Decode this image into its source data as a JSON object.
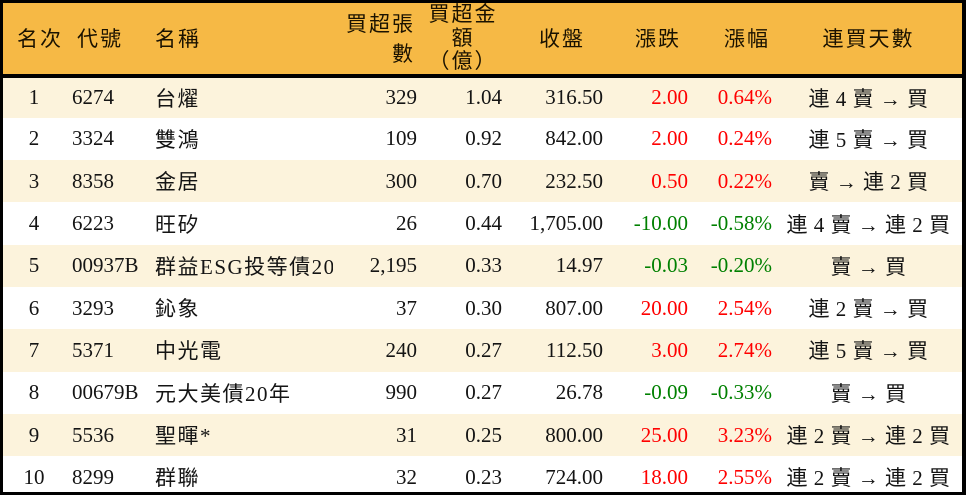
{
  "colors": {
    "header_bg": "#f6b945",
    "row_alt": "#fcf3dc",
    "row_main": "#ffffff",
    "border": "#000000",
    "up": "#ff0000",
    "down": "#008000"
  },
  "table": {
    "headers": {
      "rank": "名次",
      "code": "代號",
      "name": "名稱",
      "volume": "買超張數",
      "amount": "買超金額\n（億）",
      "close": "收盤",
      "change": "漲跌",
      "change_pct": "漲幅",
      "streak": "連買天數"
    },
    "rows": [
      {
        "rank": "1",
        "code": "6274",
        "name": "台燿",
        "volume": "329",
        "amount": "1.04",
        "close": "316.50",
        "change": "2.00",
        "change_pct": "0.64%",
        "trend": "up",
        "streak": "連 4 賣 → 買"
      },
      {
        "rank": "2",
        "code": "3324",
        "name": "雙鴻",
        "volume": "109",
        "amount": "0.92",
        "close": "842.00",
        "change": "2.00",
        "change_pct": "0.24%",
        "trend": "up",
        "streak": "連 5 賣 → 買"
      },
      {
        "rank": "3",
        "code": "8358",
        "name": "金居",
        "volume": "300",
        "amount": "0.70",
        "close": "232.50",
        "change": "0.50",
        "change_pct": "0.22%",
        "trend": "up",
        "streak": "賣 → 連 2 買"
      },
      {
        "rank": "4",
        "code": "6223",
        "name": "旺矽",
        "volume": "26",
        "amount": "0.44",
        "close": "1,705.00",
        "change": "-10.00",
        "change_pct": "-0.58%",
        "trend": "down",
        "streak": "連 4 賣 → 連 2 買"
      },
      {
        "rank": "5",
        "code": "00937B",
        "name": "群益ESG投等債20",
        "volume": "2,195",
        "amount": "0.33",
        "close": "14.97",
        "change": "-0.03",
        "change_pct": "-0.20%",
        "trend": "down",
        "streak": "賣 → 買"
      },
      {
        "rank": "6",
        "code": "3293",
        "name": "鈊象",
        "volume": "37",
        "amount": "0.30",
        "close": "807.00",
        "change": "20.00",
        "change_pct": "2.54%",
        "trend": "up",
        "streak": "連 2 賣 → 買"
      },
      {
        "rank": "7",
        "code": "5371",
        "name": "中光電",
        "volume": "240",
        "amount": "0.27",
        "close": "112.50",
        "change": "3.00",
        "change_pct": "2.74%",
        "trend": "up",
        "streak": "連 5 賣 → 買"
      },
      {
        "rank": "8",
        "code": "00679B",
        "name": "元大美債20年",
        "volume": "990",
        "amount": "0.27",
        "close": "26.78",
        "change": "-0.09",
        "change_pct": "-0.33%",
        "trend": "down",
        "streak": "賣 → 買"
      },
      {
        "rank": "9",
        "code": "5536",
        "name": "聖暉*",
        "volume": "31",
        "amount": "0.25",
        "close": "800.00",
        "change": "25.00",
        "change_pct": "3.23%",
        "trend": "up",
        "streak": "連 2 賣 → 連 2 買"
      },
      {
        "rank": "10",
        "code": "8299",
        "name": "群聯",
        "volume": "32",
        "amount": "0.23",
        "close": "724.00",
        "change": "18.00",
        "change_pct": "2.55%",
        "trend": "up",
        "streak": "連 2 賣 → 連 2 買"
      }
    ]
  },
  "chart_data": {
    "type": "table",
    "title": "",
    "columns": [
      "名次",
      "代號",
      "名稱",
      "買超張數",
      "買超金額（億）",
      "收盤",
      "漲跌",
      "漲幅",
      "連買天數"
    ],
    "rows": [
      [
        "1",
        "6274",
        "台燿",
        "329",
        "1.04",
        "316.50",
        "2.00",
        "0.64%",
        "連 4 賣 → 買"
      ],
      [
        "2",
        "3324",
        "雙鴻",
        "109",
        "0.92",
        "842.00",
        "2.00",
        "0.24%",
        "連 5 賣 → 買"
      ],
      [
        "3",
        "8358",
        "金居",
        "300",
        "0.70",
        "232.50",
        "0.50",
        "0.22%",
        "賣 → 連 2 買"
      ],
      [
        "4",
        "6223",
        "旺矽",
        "26",
        "0.44",
        "1,705.00",
        "-10.00",
        "-0.58%",
        "連 4 賣 → 連 2 買"
      ],
      [
        "5",
        "00937B",
        "群益ESG投等債20",
        "2,195",
        "0.33",
        "14.97",
        "-0.03",
        "-0.20%",
        "賣 → 買"
      ],
      [
        "6",
        "3293",
        "鈊象",
        "37",
        "0.30",
        "807.00",
        "20.00",
        "2.54%",
        "連 2 賣 → 買"
      ],
      [
        "7",
        "5371",
        "中光電",
        "240",
        "0.27",
        "112.50",
        "3.00",
        "2.74%",
        "連 5 賣 → 買"
      ],
      [
        "8",
        "00679B",
        "元大美債20年",
        "990",
        "0.27",
        "26.78",
        "-0.09",
        "-0.33%",
        "賣 → 買"
      ],
      [
        "9",
        "5536",
        "聖暉*",
        "31",
        "0.25",
        "800.00",
        "25.00",
        "3.23%",
        "連 2 賣 → 連 2 買"
      ],
      [
        "10",
        "8299",
        "群聯",
        "32",
        "0.23",
        "724.00",
        "18.00",
        "2.55%",
        "連 2 賣 → 連 2 買"
      ]
    ]
  }
}
